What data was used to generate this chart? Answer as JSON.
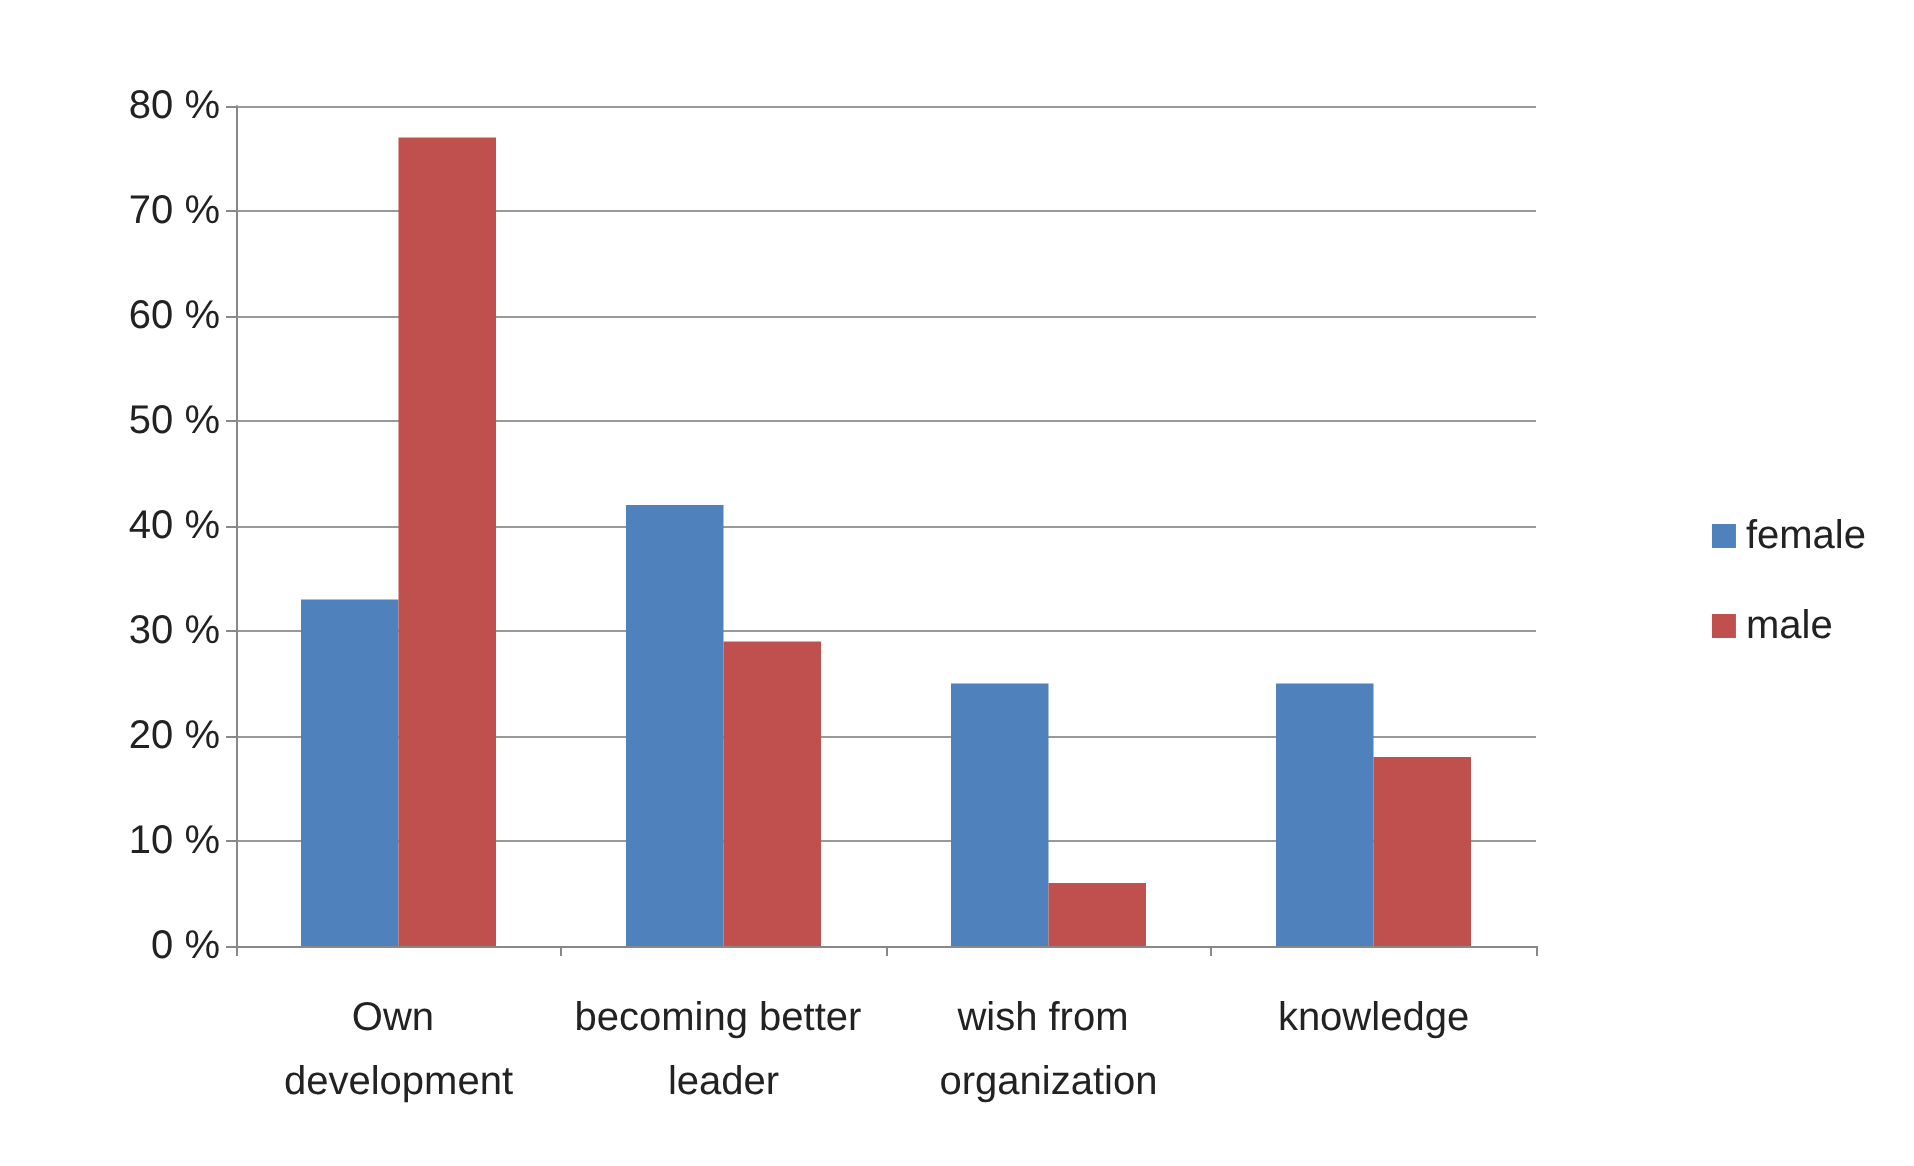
{
  "chart_data": {
    "type": "bar",
    "categories": [
      "Own development",
      "becoming better leader",
      "wish from organization",
      "knowledge"
    ],
    "series": [
      {
        "name": "female",
        "color": "#4f81bd",
        "values": [
          33,
          42,
          25,
          25
        ]
      },
      {
        "name": "male",
        "color": "#c0504d",
        "values": [
          77,
          29,
          6,
          18
        ]
      }
    ],
    "ylim": [
      0,
      80
    ],
    "yticks": [
      {
        "value": 0,
        "label": "0 %"
      },
      {
        "value": 10,
        "label": "10 %"
      },
      {
        "value": 20,
        "label": "20 %"
      },
      {
        "value": 30,
        "label": "30 %"
      },
      {
        "value": 40,
        "label": "40 %"
      },
      {
        "value": 50,
        "label": "50 %"
      },
      {
        "value": 60,
        "label": "60 %"
      },
      {
        "value": 70,
        "label": "70 %"
      },
      {
        "value": 80,
        "label": "80 %"
      }
    ],
    "grid": "y",
    "legend": "right"
  }
}
